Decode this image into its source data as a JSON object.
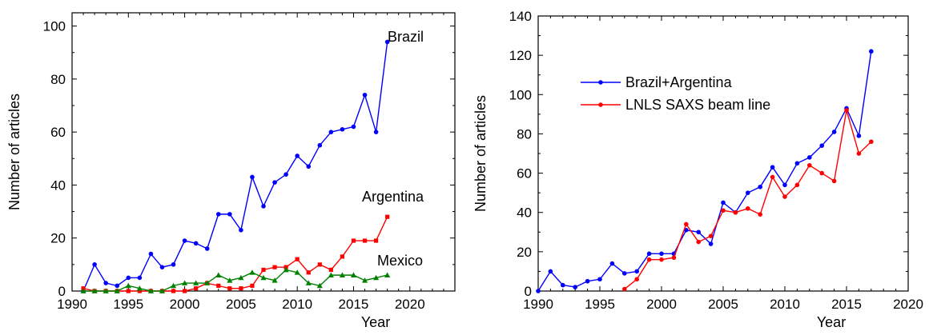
{
  "chart_data": [
    {
      "type": "line",
      "xlabel": "Year",
      "ylabel": "Number of articles",
      "xlim": [
        1990,
        2024
      ],
      "ylim": [
        0,
        105
      ],
      "xticks": [
        1990,
        1995,
        2000,
        2005,
        2010,
        2015,
        2020
      ],
      "yticks": [
        0,
        20,
        40,
        60,
        80,
        100
      ],
      "grid": false,
      "annotations": [
        "Brazil",
        "Argentina",
        "Mexico"
      ],
      "series": [
        {
          "name": "Brazil",
          "color": "#0000ff",
          "marker": "circle",
          "x": [
            1991,
            1992,
            1993,
            1994,
            1995,
            1996,
            1997,
            1998,
            1999,
            2000,
            2001,
            2002,
            2003,
            2004,
            2005,
            2006,
            2007,
            2008,
            2009,
            2010,
            2011,
            2012,
            2013,
            2014,
            2015,
            2016,
            2017,
            2018
          ],
          "y": [
            0,
            10,
            3,
            2,
            5,
            5,
            14,
            9,
            10,
            19,
            18,
            16,
            29,
            29,
            23,
            43,
            32,
            41,
            44,
            51,
            47,
            55,
            60,
            61,
            62,
            74,
            60,
            94
          ]
        },
        {
          "name": "Argentina",
          "color": "#ff0000",
          "marker": "square",
          "x": [
            1991,
            1992,
            1993,
            1994,
            1995,
            1996,
            1997,
            1998,
            1999,
            2000,
            2001,
            2002,
            2003,
            2004,
            2005,
            2006,
            2007,
            2008,
            2009,
            2010,
            2011,
            2012,
            2013,
            2014,
            2015,
            2016,
            2017,
            2018
          ],
          "y": [
            1,
            0,
            0,
            0,
            0,
            0,
            0,
            0,
            0,
            0,
            1,
            3,
            2,
            1,
            1,
            2,
            8,
            9,
            9,
            12,
            7,
            10,
            8,
            13,
            19,
            19,
            19,
            28
          ]
        },
        {
          "name": "Mexico",
          "color": "#008000",
          "marker": "triangle",
          "x": [
            1991,
            1992,
            1993,
            1994,
            1995,
            1996,
            1997,
            1998,
            1999,
            2000,
            2001,
            2002,
            2003,
            2004,
            2005,
            2006,
            2007,
            2008,
            2009,
            2010,
            2011,
            2012,
            2013,
            2014,
            2015,
            2016,
            2017,
            2018
          ],
          "y": [
            0,
            0,
            0,
            0,
            2,
            1,
            0,
            0,
            2,
            3,
            3,
            3,
            6,
            4,
            5,
            7,
            5,
            4,
            8,
            7,
            3,
            2,
            6,
            6,
            6,
            4,
            5,
            6
          ]
        }
      ]
    },
    {
      "type": "line",
      "xlabel": "Year",
      "ylabel": "Number of articles",
      "xlim": [
        1990,
        2020
      ],
      "ylim": [
        0,
        140
      ],
      "xticks": [
        1990,
        1995,
        2000,
        2005,
        2010,
        2015,
        2020
      ],
      "yticks": [
        0,
        20,
        40,
        60,
        80,
        100,
        120,
        140
      ],
      "grid": false,
      "legend": "top-left",
      "series": [
        {
          "name": "Brazil+Argentina",
          "color": "#0000ff",
          "marker": "circle",
          "x": [
            1990,
            1991,
            1992,
            1993,
            1994,
            1995,
            1996,
            1997,
            1998,
            1999,
            2000,
            2001,
            2002,
            2003,
            2004,
            2005,
            2006,
            2007,
            2008,
            2009,
            2010,
            2011,
            2012,
            2013,
            2014,
            2015,
            2016,
            2017
          ],
          "y": [
            0,
            10,
            3,
            2,
            5,
            6,
            14,
            9,
            10,
            19,
            19,
            19,
            31,
            30,
            24,
            45,
            40,
            50,
            53,
            63,
            54,
            65,
            68,
            74,
            81,
            93,
            79,
            122
          ]
        },
        {
          "name": "LNLS SAXS beam line",
          "color": "#ff0000",
          "marker": "circle",
          "x": [
            1997,
            1998,
            1999,
            2000,
            2001,
            2002,
            2003,
            2004,
            2005,
            2006,
            2007,
            2008,
            2009,
            2010,
            2011,
            2012,
            2013,
            2014,
            2015,
            2016,
            2017
          ],
          "y": [
            1,
            6,
            16,
            16,
            17,
            34,
            25,
            28,
            41,
            40,
            42,
            39,
            58,
            48,
            54,
            64,
            60,
            56,
            92,
            70,
            76
          ]
        }
      ]
    }
  ]
}
